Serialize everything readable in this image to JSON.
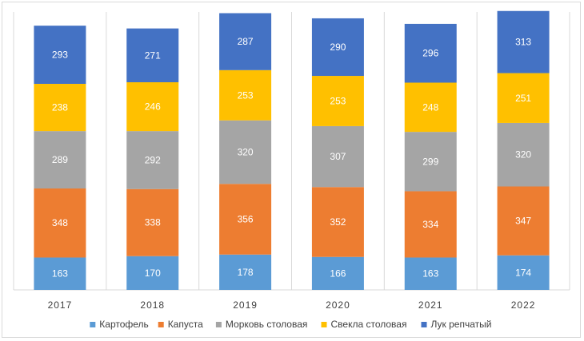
{
  "chart_data": {
    "type": "bar",
    "stacked": true,
    "categories": [
      "2017",
      "2018",
      "2019",
      "2020",
      "2021",
      "2022"
    ],
    "series": [
      {
        "name": "Картофель",
        "color": "#5b9bd5",
        "values": [
          163,
          170,
          178,
          166,
          163,
          174
        ]
      },
      {
        "name": "Капуста",
        "color": "#ed7d31",
        "values": [
          348,
          338,
          356,
          352,
          334,
          347
        ]
      },
      {
        "name": "Морковь столовая",
        "color": "#a5a5a5",
        "values": [
          289,
          292,
          320,
          307,
          299,
          320
        ]
      },
      {
        "name": "Свекла столовая",
        "color": "#ffc000",
        "values": [
          238,
          246,
          253,
          253,
          248,
          251
        ]
      },
      {
        "name": "Лук репчатый",
        "color": "#4472c4",
        "values": [
          293,
          271,
          287,
          290,
          296,
          313
        ]
      }
    ],
    "title": "",
    "xlabel": "",
    "ylabel": "",
    "ylim": [
      0,
      1400
    ],
    "grid": "vertical",
    "legend": "bottom"
  }
}
